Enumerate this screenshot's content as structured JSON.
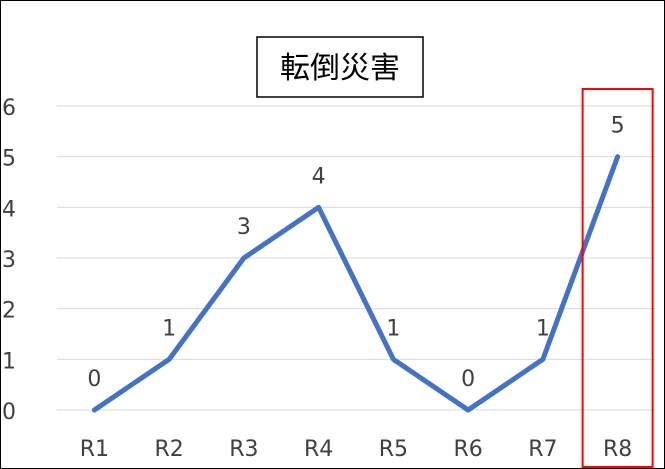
{
  "chart_data": {
    "type": "line",
    "title": "転倒災害",
    "categories": [
      "R1",
      "R2",
      "R3",
      "R4",
      "R5",
      "R6",
      "R7",
      "R8"
    ],
    "series": [
      {
        "values": [
          0,
          1,
          3,
          4,
          1,
          0,
          1,
          5
        ]
      }
    ],
    "data_labels": [
      "0",
      "1",
      "3",
      "4",
      "1",
      "0",
      "1",
      "5"
    ],
    "y_ticks": [
      "0",
      "1",
      "2",
      "3",
      "4",
      "5",
      "6"
    ],
    "ylim": [
      0,
      6
    ],
    "grid": true,
    "highlighted_category": "R8",
    "colors": {
      "line": "#4472C4",
      "highlight_box": "#FF0000",
      "grid": "#D9D9D9",
      "text": "#404040"
    }
  }
}
